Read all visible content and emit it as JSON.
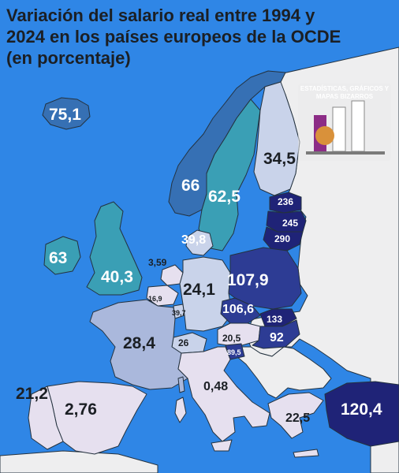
{
  "title": "Variación del salario real entre 1994 y 2024 en los países europeos de la OCDE (en porcentaje)",
  "watermark": {
    "text": "ESTADÍSTICAS, GRÁFICOS Y MAPAS BIZARROS"
  },
  "colors": {
    "sea": "#2f86e6",
    "non_oecd": "#eeeeef",
    "lowest": "#e6e0ef",
    "low": "#aab8dc",
    "mid_light": "#c9d3ea",
    "teal": "#3a9fb5",
    "steel": "#3670b4",
    "dark": "#2d3c94",
    "darkest": "#1f2377"
  },
  "countries": [
    {
      "id": "iceland",
      "value": "75,1",
      "color": "#3670b4"
    },
    {
      "id": "norway",
      "value": "66",
      "color": "#3670b4"
    },
    {
      "id": "sweden",
      "value": "62,5",
      "color": "#3a9fb5"
    },
    {
      "id": "finland",
      "value": "34,5",
      "color": "#c9d3ea"
    },
    {
      "id": "estonia",
      "value": "236",
      "color": "#1f2377"
    },
    {
      "id": "latvia",
      "value": "245",
      "color": "#1f2377"
    },
    {
      "id": "lithuania",
      "value": "290",
      "color": "#1f2377"
    },
    {
      "id": "denmark",
      "value": "39,8",
      "color": "#c9d3ea"
    },
    {
      "id": "ireland",
      "value": "63",
      "color": "#3a9fb5"
    },
    {
      "id": "uk",
      "value": "40,3",
      "color": "#3a9fb5"
    },
    {
      "id": "netherlands",
      "value": "3,59",
      "color": "#e6e0ef"
    },
    {
      "id": "belgium",
      "value": "16,9",
      "color": "#e6e0ef"
    },
    {
      "id": "luxembourg",
      "value": "39,7",
      "color": "#c9d3ea"
    },
    {
      "id": "germany",
      "value": "24,1",
      "color": "#c9d3ea"
    },
    {
      "id": "poland",
      "value": "107,9",
      "color": "#2d3c94"
    },
    {
      "id": "czechia",
      "value": "106,6",
      "color": "#2d3c94"
    },
    {
      "id": "slovakia",
      "value": "133",
      "color": "#1f2377"
    },
    {
      "id": "hungary",
      "value": "92",
      "color": "#2d3c94"
    },
    {
      "id": "austria",
      "value": "20,5",
      "color": "#e6e0ef"
    },
    {
      "id": "slovenia",
      "value": "89,5",
      "color": "#2d3c94"
    },
    {
      "id": "switzerland",
      "value": "26",
      "color": "#c9d3ea"
    },
    {
      "id": "france",
      "value": "28,4",
      "color": "#aab8dc"
    },
    {
      "id": "italy",
      "value": "0,48",
      "color": "#e6e0ef"
    },
    {
      "id": "spain",
      "value": "2,76",
      "color": "#e6e0ef"
    },
    {
      "id": "portugal",
      "value": "21,2",
      "color": "#e6e0ef"
    },
    {
      "id": "greece",
      "value": "22,5",
      "color": "#e6e0ef"
    },
    {
      "id": "turkey",
      "value": "120,4",
      "color": "#1f2377"
    }
  ]
}
